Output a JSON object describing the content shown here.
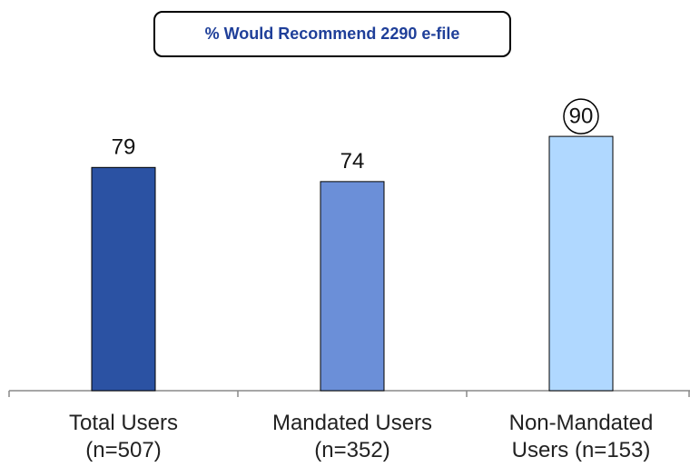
{
  "chart_data": {
    "type": "bar",
    "title": "% Would Recommend 2290 e-file",
    "categories": [
      "Total Users\n(n=507)",
      "Mandated Users\n(n=352)",
      "Non-Mandated\nUsers (n=153)"
    ],
    "values": [
      79,
      74,
      90
    ],
    "colors": [
      "#2b52a3",
      "#6b8fd8",
      "#b0d8ff"
    ],
    "circled": [
      2
    ],
    "ylim": [
      0,
      100
    ]
  }
}
